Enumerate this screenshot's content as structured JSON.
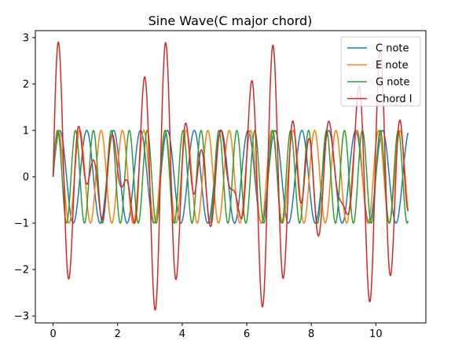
{
  "chart_data": {
    "type": "line",
    "title": "Sine Wave(C major chord)",
    "xlabel": "",
    "ylabel": "",
    "xlim": [
      -0.55,
      11.55
    ],
    "ylim": [
      -3.15,
      3.15
    ],
    "xticks": [
      0,
      2,
      4,
      6,
      8,
      10
    ],
    "yticks": [
      -3,
      -2,
      -1,
      0,
      1,
      2,
      3
    ],
    "x_range": [
      0,
      11
    ],
    "sample_count": 1000,
    "grid": false,
    "legend_position": "top-right",
    "series": [
      {
        "name": "C note",
        "color": "#1f77b4",
        "amplitude": 1.0,
        "cycles_per_unit": 1.2,
        "phase": 0.0
      },
      {
        "name": "E note",
        "color": "#ff7f0e",
        "amplitude": 1.0,
        "cycles_per_unit": 1.512,
        "phase": 0.0
      },
      {
        "name": "G note",
        "color": "#2ca02c",
        "amplitude": 1.0,
        "cycles_per_unit": 1.8,
        "phase": 0.0
      },
      {
        "name": "Chord I",
        "color": "#d62728",
        "components": [
          "C note",
          "E note",
          "G note"
        ]
      }
    ]
  }
}
